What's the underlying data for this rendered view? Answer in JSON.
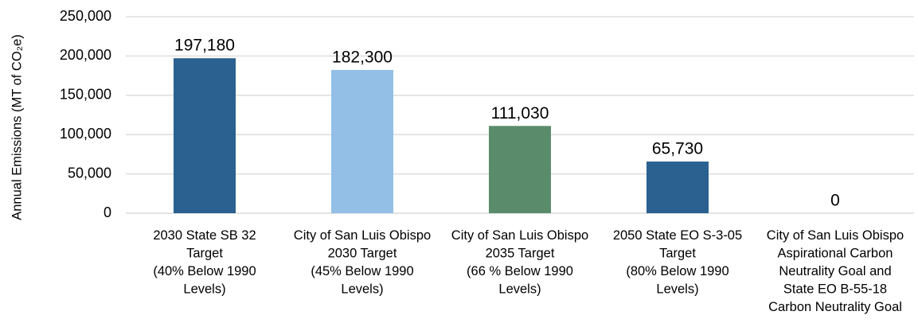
{
  "chart_data": {
    "type": "bar",
    "y_axis_label": "Annual Emissions (MT of CO₂e)",
    "categories": [
      "2030 State SB 32\nTarget\n(40% Below 1990\nLevels)",
      "City of San Luis Obispo\n2030 Target\n(45% Below 1990\nLevels)",
      "City of San Luis Obispo\n2035 Target\n(66 % Below 1990\nLevels)",
      "2050 State EO S-3-05\nTarget\n(80% Below 1990\nLevels)",
      "City of San Luis Obispo\nAspirational Carbon\nNeutrality Goal and\nState EO B-55-18\nCarbon Neutrality Goal"
    ],
    "values": [
      197180,
      182300,
      111030,
      65730,
      0
    ],
    "value_labels": [
      "197,180",
      "182,300",
      "111,030",
      "65,730",
      "0"
    ],
    "colors": [
      "#2a6190",
      "#93bfe6",
      "#5a8c6c",
      "#2a6190",
      "#2a6190"
    ],
    "ylim": [
      0,
      250000
    ],
    "yticks": [
      0,
      {
        "value": 50000,
        "label": "50,000"
      },
      {
        "value": 100000,
        "label": "100,000"
      },
      {
        "value": 150000,
        "label": "150,000"
      },
      {
        "value": 200000,
        "label": "200,000"
      },
      {
        "value": 250000,
        "label": "250,000"
      }
    ],
    "grid": true
  }
}
